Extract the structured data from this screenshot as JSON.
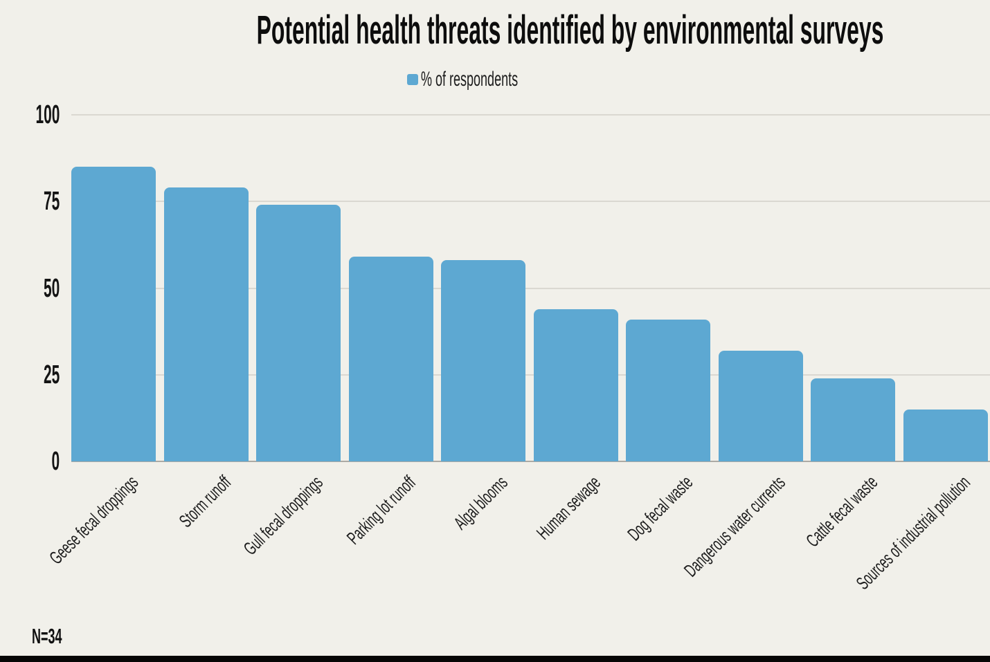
{
  "chart_data": {
    "type": "bar",
    "title": "Potential health threats identified by environmental surveys",
    "legend": {
      "label": "% of respondents",
      "position": "top-center"
    },
    "categories": [
      "Geese fecal droppings",
      "Storm runoff",
      "Gull fecal droppings",
      "Parking lot runoff",
      "Algal blooms",
      "Human sewage",
      "Dog fecal waste",
      "Dangerous water currents",
      "Cattle fecal waste",
      "Sources of industrial pollution"
    ],
    "values": [
      85,
      79,
      74,
      59,
      58,
      44,
      41,
      32,
      24,
      15
    ],
    "series_name": "% of respondents",
    "xlabel": "",
    "ylabel": "",
    "ylim": [
      0,
      100
    ],
    "yticks": [
      100,
      75,
      50,
      25,
      0
    ],
    "grid": "horizontal",
    "x_label_rotation_deg": -45,
    "note": "N=34",
    "colors": {
      "bar": "#5DA8D2",
      "background": "#F1F0EA",
      "gridline": "#DAD8D1",
      "baseline": "#ACAAA4",
      "text": "#121212",
      "bottom_strip": "#060606"
    }
  }
}
